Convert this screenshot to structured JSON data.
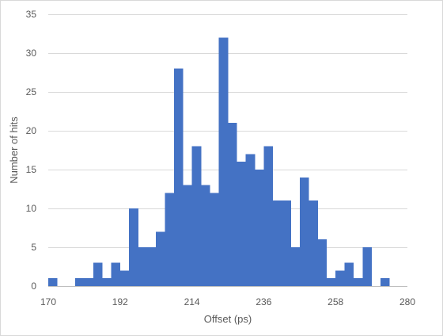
{
  "chart_data": {
    "type": "bar",
    "title": "",
    "xlabel": "Offset (ps)",
    "ylabel": "Number of hits",
    "xlim": [
      170,
      280
    ],
    "ylim": [
      0,
      35
    ],
    "bin_width": 2.75,
    "x_ticks": [
      "170",
      "192",
      "214",
      "236",
      "258",
      "280"
    ],
    "y_ticks": [
      "0",
      "5",
      "10",
      "15",
      "20",
      "25",
      "30",
      "35"
    ],
    "grid": true,
    "legend": "none",
    "bar_color": "#4472c4",
    "categories": [
      "170-172.75",
      "172.75-175.5",
      "175.5-178.25",
      "178.25-181",
      "181-183.75",
      "183.75-186.5",
      "186.5-189.25",
      "189.25-192",
      "192-194.75",
      "194.75-197.5",
      "197.5-200.25",
      "200.25-203",
      "203-205.75",
      "205.75-208.5",
      "208.5-211.25",
      "211.25-214",
      "214-216.75",
      "216.75-219.5",
      "219.5-222.25",
      "222.25-225",
      "225-227.75",
      "227.75-230.5",
      "230.5-233.25",
      "233.25-236",
      "236-238.75",
      "238.75-241.5",
      "241.5-244.25",
      "244.25-247",
      "247-249.75",
      "249.75-252.5",
      "252.5-255.25",
      "255.25-258",
      "258-260.75",
      "260.75-263.5",
      "263.5-266.25",
      "266.25-269",
      "269-271.75",
      "271.75-274.5",
      "274.5-277.25",
      "277.25-280"
    ],
    "values": [
      1,
      0,
      0,
      1,
      1,
      3,
      1,
      3,
      2,
      10,
      5,
      5,
      7,
      12,
      28,
      13,
      18,
      13,
      12,
      32,
      21,
      16,
      17,
      15,
      18,
      11,
      11,
      5,
      14,
      11,
      6,
      1,
      2,
      3,
      1,
      5,
      0,
      1,
      0,
      0
    ]
  }
}
